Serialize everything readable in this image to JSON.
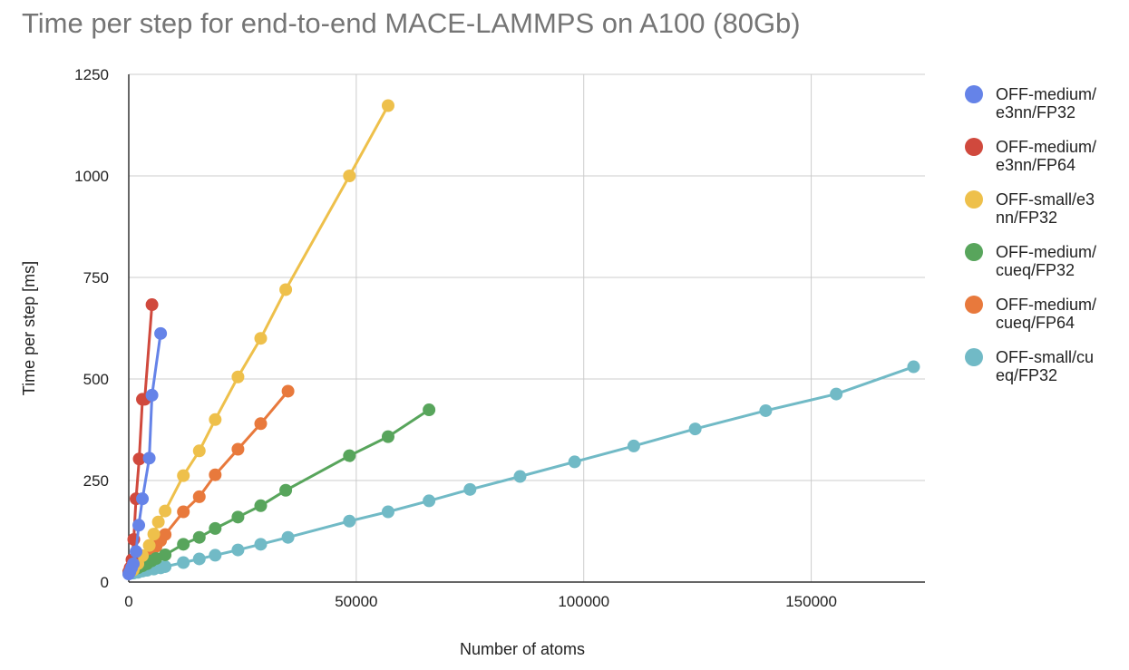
{
  "chart_data": {
    "type": "line",
    "title": "Time per step for end-to-end MACE-LAMMPS on A100 (80Gb)",
    "xlabel": "Number of atoms",
    "ylabel": "Time per step [ms]",
    "xlim": [
      0,
      175000
    ],
    "ylim": [
      0,
      1250
    ],
    "x_ticks": [
      "0",
      "50000",
      "100000",
      "150000"
    ],
    "y_ticks": [
      "0",
      "250",
      "500",
      "750",
      "1000",
      "1250"
    ],
    "grid": true,
    "legend_position": "right",
    "series": [
      {
        "name_lines": [
          "OFF-medium/",
          "e3nn/FP32"
        ],
        "color": "#6583E8",
        "x": [
          0,
          250,
          600,
          1000,
          1600,
          2200,
          3000,
          4500,
          5100,
          7000
        ],
        "y": [
          20,
          25,
          35,
          45,
          75,
          140,
          205,
          305,
          460,
          612
        ]
      },
      {
        "name_lines": [
          "OFF-medium/",
          "e3nn/FP64"
        ],
        "color": "#D0493D",
        "x": [
          0,
          300,
          700,
          1100,
          1600,
          2300,
          3000,
          3500,
          5100
        ],
        "y": [
          25,
          35,
          55,
          105,
          205,
          303,
          450,
          450,
          683
        ]
      },
      {
        "name_lines": [
          "OFF-small/e3",
          "nn/FP32"
        ],
        "color": "#EEC04B",
        "x": [
          0,
          1000,
          2000,
          3000,
          4500,
          5500,
          6500,
          8000,
          12000,
          15500,
          19000,
          24000,
          29000,
          34500,
          48500,
          57000
        ],
        "y": [
          22,
          30,
          45,
          65,
          90,
          118,
          148,
          175,
          262,
          323,
          400,
          505,
          600,
          720,
          1000,
          1173
        ]
      },
      {
        "name_lines": [
          "OFF-medium/",
          "cueq/FP32"
        ],
        "color": "#58A55C",
        "x": [
          0,
          1000,
          2000,
          3000,
          4000,
          5000,
          6000,
          8000,
          12000,
          15500,
          19000,
          24000,
          29000,
          34500,
          48500,
          57000,
          66000
        ],
        "y": [
          25,
          30,
          35,
          40,
          45,
          52,
          58,
          67,
          93,
          110,
          132,
          160,
          188,
          226,
          311,
          358,
          424
        ]
      },
      {
        "name_lines": [
          "OFF-medium/",
          "cueq/FP64"
        ],
        "color": "#E8793C",
        "x": [
          0,
          1000,
          2000,
          3000,
          4000,
          5000,
          6000,
          7000,
          8000,
          12000,
          15500,
          19000,
          24000,
          29000,
          35000
        ],
        "y": [
          25,
          35,
          45,
          55,
          65,
          75,
          88,
          102,
          117,
          173,
          210,
          264,
          327,
          390,
          470
        ]
      },
      {
        "name_lines": [
          "OFF-small/cu",
          "eq/FP32"
        ],
        "color": "#71BAC6",
        "x": [
          0,
          1000,
          2000,
          3000,
          4000,
          5500,
          7000,
          8000,
          12000,
          15500,
          19000,
          24000,
          29000,
          35000,
          48500,
          57000,
          66000,
          75000,
          86000,
          98000,
          111000,
          124500,
          140000,
          155500,
          172500
        ],
        "y": [
          20,
          22,
          24,
          27,
          29,
          32,
          35,
          38,
          48,
          57,
          66,
          79,
          93,
          110,
          150,
          173,
          200,
          228,
          260,
          296,
          335,
          377,
          422,
          463,
          530
        ]
      }
    ]
  }
}
